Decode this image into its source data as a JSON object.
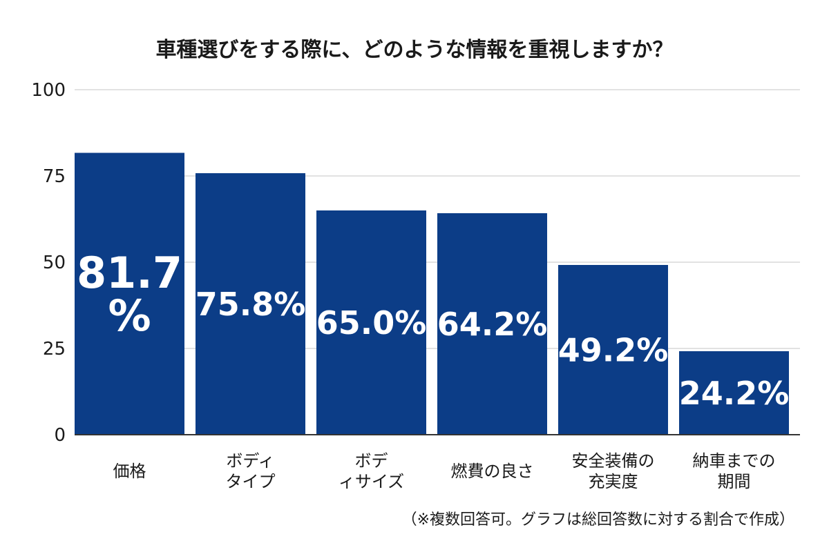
{
  "chart_data": {
    "type": "bar",
    "title": "車種選びをする際に、どのような情報を重視しますか？",
    "categories": [
      [
        "価格"
      ],
      [
        "ボディ",
        "タイプ"
      ],
      [
        "ボデ",
        "ィサイズ"
      ],
      [
        "燃費の良さ"
      ],
      [
        "安全装備の",
        "充実度"
      ],
      [
        "納車までの",
        "期間"
      ]
    ],
    "values": [
      81.7,
      75.8,
      65.0,
      64.2,
      49.2,
      24.2
    ],
    "value_labels": [
      [
        "81.7",
        "%"
      ],
      [
        "75.8%"
      ],
      [
        "65.0%"
      ],
      [
        "64.2%"
      ],
      [
        "49.2%"
      ],
      [
        "24.2%"
      ]
    ],
    "ylim": [
      0,
      100
    ],
    "yticks": [
      0,
      25,
      50,
      75,
      100
    ],
    "grid": true,
    "bar_color": "#0c3d87",
    "xlabel": "",
    "ylabel": ""
  },
  "footnote": "（※複数回答可。グラフは総回答数に対する割合で作成）"
}
